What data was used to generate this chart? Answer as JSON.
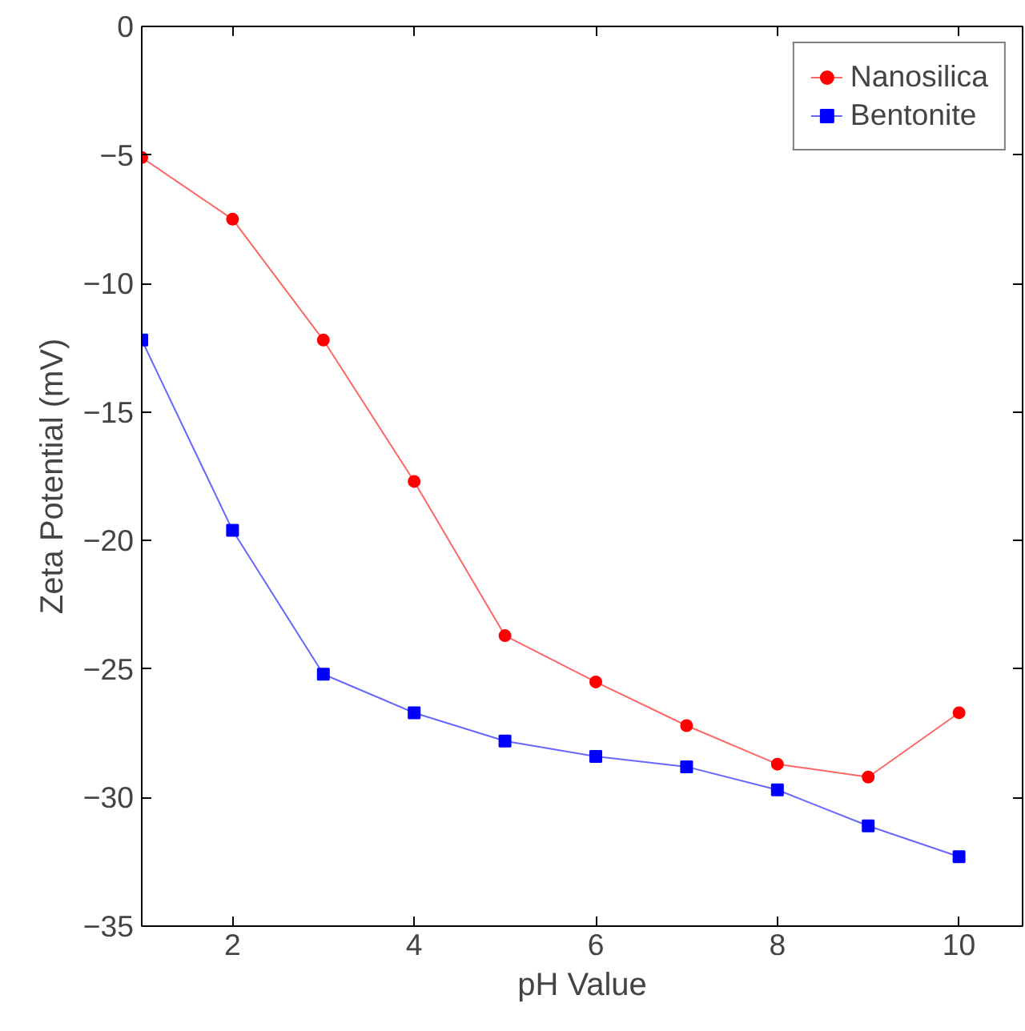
{
  "chart_data": {
    "type": "line",
    "xlabel": "pH Value",
    "ylabel": "Zeta Potential (mV)",
    "x": [
      1,
      2,
      3,
      4,
      5,
      6,
      7,
      8,
      9,
      10
    ],
    "series": [
      {
        "name": "Nanosilica",
        "color": "#ff0000",
        "marker": "circle",
        "values": [
          -5.1,
          -7.5,
          -12.2,
          -17.7,
          -23.7,
          -25.5,
          -27.2,
          -28.7,
          -29.2,
          -26.7
        ]
      },
      {
        "name": "Bentonite",
        "color": "#0000ff",
        "marker": "square",
        "values": [
          -12.2,
          -19.6,
          -25.2,
          -26.7,
          -27.8,
          -28.4,
          -28.8,
          -29.7,
          -31.1,
          -32.3
        ]
      }
    ],
    "xlim": [
      1,
      10.7
    ],
    "xticks": [
      2,
      4,
      6,
      8,
      10
    ],
    "ylim": [
      -35,
      0
    ],
    "yticks": [
      -35,
      -30,
      -25,
      -20,
      -15,
      -10,
      -5,
      0
    ],
    "grid": false,
    "legend": "top right",
    "line_style": "solid"
  }
}
